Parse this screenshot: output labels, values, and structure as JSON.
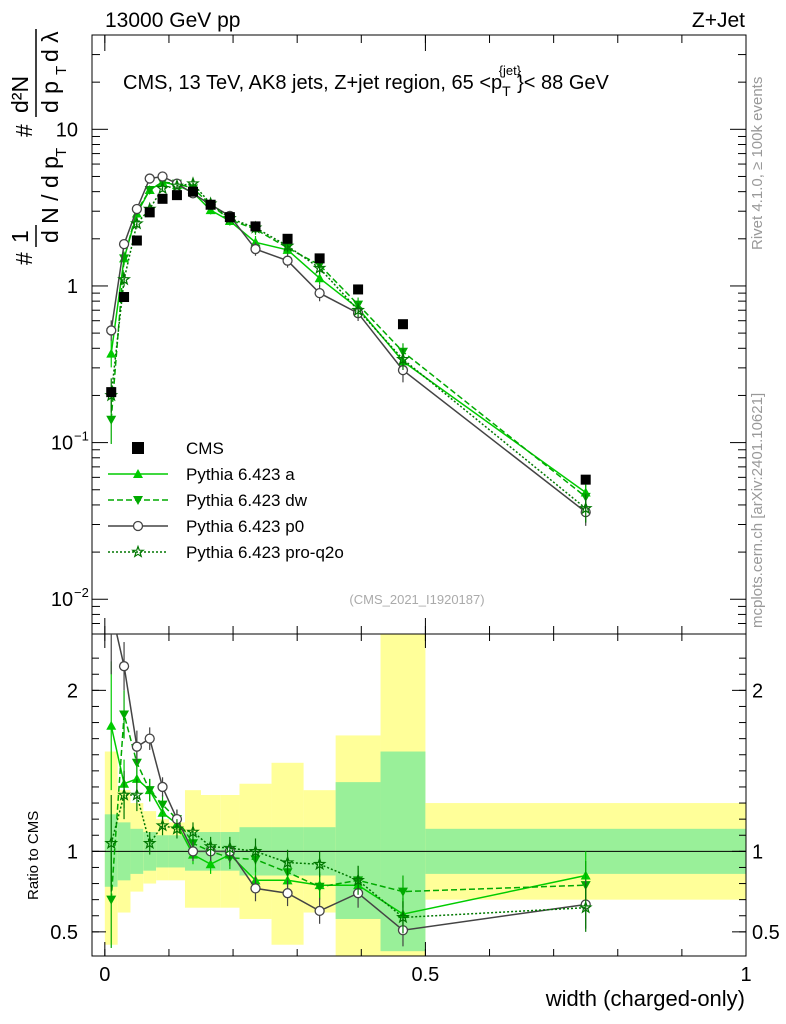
{
  "header": {
    "left": "13000 GeV pp",
    "right": "Z+Jet"
  },
  "side_text": {
    "rivet": "Rivet 4.1.0, ≥ 100k events",
    "mcplots": "mcplots.cern.ch [arXiv:2401.10621]"
  },
  "chart_data": {
    "type": "line",
    "title": "CMS, 13 TeV, AK8 jets, Z+jet region, 65 <p_T^{jet}< 88 GeV",
    "title_parts": {
      "main": "CMS, 13 TeV, AK8 jets, Z+jet region, 65 <p",
      "sub": "T",
      "sup": "{jet}",
      "tail": "}< 88 GeV"
    },
    "analysis_id": "(CMS_2021_I1920187)",
    "xlabel": "width (charged-only)",
    "ylabel": {
      "pre": "1",
      "dN": "d N / d p",
      "T": "T",
      "num": "d²N",
      "den": "d p",
      "lam": "d λ",
      "hash": "#"
    },
    "ratio_ylabel": "Ratio to CMS",
    "xlim": [
      -0.02,
      1.0
    ],
    "ylim": [
      0.006,
      40
    ],
    "ratio_ylim": [
      0.35,
      2.35
    ],
    "x_ticks": [
      {
        "value": 0,
        "label": "0"
      },
      {
        "value": 0.5,
        "label": "0.5"
      },
      {
        "value": 1,
        "label": "1"
      }
    ],
    "y_ticks": [
      {
        "value": 10,
        "label": "10"
      },
      {
        "value": 1,
        "label": "1"
      },
      {
        "value": 0.1,
        "label": "10",
        "exp": "−1"
      },
      {
        "value": 0.01,
        "label": "10",
        "exp": "−2"
      }
    ],
    "ratio_y_ticks": [
      {
        "value": 2,
        "label": "2"
      },
      {
        "value": 1,
        "label": "1"
      },
      {
        "value": 0.5,
        "label": "0.5"
      }
    ],
    "bins": [
      {
        "lo": 0.0,
        "hi": 0.02,
        "x": 0.01
      },
      {
        "lo": 0.02,
        "hi": 0.04,
        "x": 0.03
      },
      {
        "lo": 0.04,
        "hi": 0.06,
        "x": 0.05
      },
      {
        "lo": 0.06,
        "hi": 0.08,
        "x": 0.07
      },
      {
        "lo": 0.08,
        "hi": 0.1,
        "x": 0.09
      },
      {
        "lo": 0.1,
        "hi": 0.125,
        "x": 0.1125
      },
      {
        "lo": 0.125,
        "hi": 0.15,
        "x": 0.1375
      },
      {
        "lo": 0.15,
        "hi": 0.18,
        "x": 0.165
      },
      {
        "lo": 0.18,
        "hi": 0.21,
        "x": 0.195
      },
      {
        "lo": 0.21,
        "hi": 0.26,
        "x": 0.235
      },
      {
        "lo": 0.26,
        "hi": 0.31,
        "x": 0.285
      },
      {
        "lo": 0.31,
        "hi": 0.36,
        "x": 0.335
      },
      {
        "lo": 0.36,
        "hi": 0.43,
        "x": 0.395
      },
      {
        "lo": 0.43,
        "hi": 0.5,
        "x": 0.465
      },
      {
        "lo": 0.5,
        "hi": 1.0,
        "x": 0.75
      }
    ],
    "data_points": [
      0.21,
      0.85,
      1.95,
      2.95,
      3.6,
      3.8,
      4.0,
      3.3,
      2.75,
      2.4,
      2.0,
      1.5,
      0.95,
      0.57,
      0.058
    ],
    "band_inner": [
      [
        0.78,
        1.23
      ],
      [
        0.82,
        1.18
      ],
      [
        0.86,
        1.14
      ],
      [
        0.88,
        1.12
      ],
      [
        0.9,
        1.1
      ],
      [
        0.9,
        1.1
      ],
      [
        0.88,
        1.12
      ],
      [
        0.88,
        1.12
      ],
      [
        0.88,
        1.12
      ],
      [
        0.85,
        1.15
      ],
      [
        0.85,
        1.15
      ],
      [
        0.85,
        1.15
      ],
      [
        0.58,
        1.43
      ],
      [
        0.38,
        1.62
      ],
      [
        0.86,
        1.14
      ]
    ],
    "band_outer": [
      [
        0.42,
        1.62
      ],
      [
        0.62,
        1.38
      ],
      [
        0.75,
        1.3
      ],
      [
        0.8,
        1.25
      ],
      [
        0.82,
        1.2
      ],
      [
        0.82,
        1.18
      ],
      [
        0.65,
        1.38
      ],
      [
        0.65,
        1.35
      ],
      [
        0.65,
        1.35
      ],
      [
        0.58,
        1.42
      ],
      [
        0.42,
        1.55
      ],
      [
        0.62,
        1.38
      ],
      [
        0.28,
        1.72
      ],
      [
        0.28,
        2.4
      ],
      [
        0.7,
        1.3
      ]
    ],
    "series": [
      {
        "name": "Pythia 6.423 a",
        "color": "#00cc00",
        "dash": "",
        "marker": "triangle-up",
        "values": [
          0.37,
          1.5,
          2.9,
          4.1,
          4.6,
          4.4,
          3.95,
          3.05,
          2.6,
          1.9,
          1.7,
          1.12,
          0.72,
          0.33,
          0.048
        ],
        "ratio": [
          1.78,
          1.42,
          1.45,
          1.38,
          1.24,
          1.17,
          0.98,
          0.92,
          0.98,
          0.82,
          0.82,
          0.79,
          0.79,
          0.61,
          0.85
        ],
        "ratio_err": [
          0.4,
          0.15,
          0.1,
          0.07,
          0.06,
          0.06,
          0.06,
          0.06,
          0.07,
          0.08,
          0.08,
          0.08,
          0.09,
          0.1,
          0.15
        ]
      },
      {
        "name": "Pythia 6.423 dw",
        "color": "#00aa00",
        "dash": "6,3",
        "marker": "triangle-down",
        "values": [
          0.14,
          1.5,
          3.0,
          4.1,
          4.6,
          4.5,
          4.2,
          3.3,
          2.65,
          2.3,
          1.75,
          1.36,
          0.76,
          0.38,
          0.045
        ],
        "ratio": [
          0.7,
          1.85,
          1.55,
          1.38,
          1.29,
          1.2,
          1.05,
          1.0,
          0.96,
          0.95,
          0.87,
          0.78,
          0.82,
          0.75,
          0.79
        ],
        "ratio_err": [
          0.3,
          0.15,
          0.1,
          0.07,
          0.06,
          0.06,
          0.06,
          0.06,
          0.07,
          0.08,
          0.08,
          0.08,
          0.09,
          0.1,
          0.15
        ]
      },
      {
        "name": "Pythia 6.423 p0",
        "color": "#444444",
        "dash": "",
        "marker": "circle-open",
        "values": [
          0.52,
          1.85,
          3.1,
          4.85,
          5.0,
          4.5,
          3.9,
          3.3,
          2.8,
          1.72,
          1.45,
          0.9,
          0.67,
          0.29,
          0.036
        ],
        "ratio": [
          2.5,
          2.15,
          1.65,
          1.7,
          1.4,
          1.2,
          1.0,
          1.0,
          1.0,
          0.77,
          0.74,
          0.63,
          0.74,
          0.51,
          0.67
        ],
        "ratio_err": [
          0.4,
          0.15,
          0.1,
          0.07,
          0.06,
          0.06,
          0.06,
          0.06,
          0.07,
          0.08,
          0.08,
          0.08,
          0.09,
          0.1,
          0.15
        ]
      },
      {
        "name": "Pythia 6.423 pro-q2o",
        "color": "#007700",
        "dash": "2,2",
        "marker": "star-open",
        "values": [
          0.2,
          1.1,
          2.5,
          3.1,
          4.2,
          4.35,
          4.5,
          3.35,
          2.7,
          2.35,
          1.8,
          1.3,
          0.7,
          0.34,
          0.038
        ],
        "ratio": [
          1.05,
          1.35,
          1.35,
          1.05,
          1.16,
          1.14,
          1.12,
          1.03,
          1.02,
          1.0,
          0.93,
          0.92,
          0.82,
          0.59,
          0.65
        ],
        "ratio_err": [
          0.3,
          0.15,
          0.1,
          0.07,
          0.06,
          0.06,
          0.06,
          0.06,
          0.07,
          0.08,
          0.08,
          0.08,
          0.09,
          0.1,
          0.15
        ]
      }
    ],
    "data_series_name": "CMS",
    "legend_position": "lower-left"
  }
}
